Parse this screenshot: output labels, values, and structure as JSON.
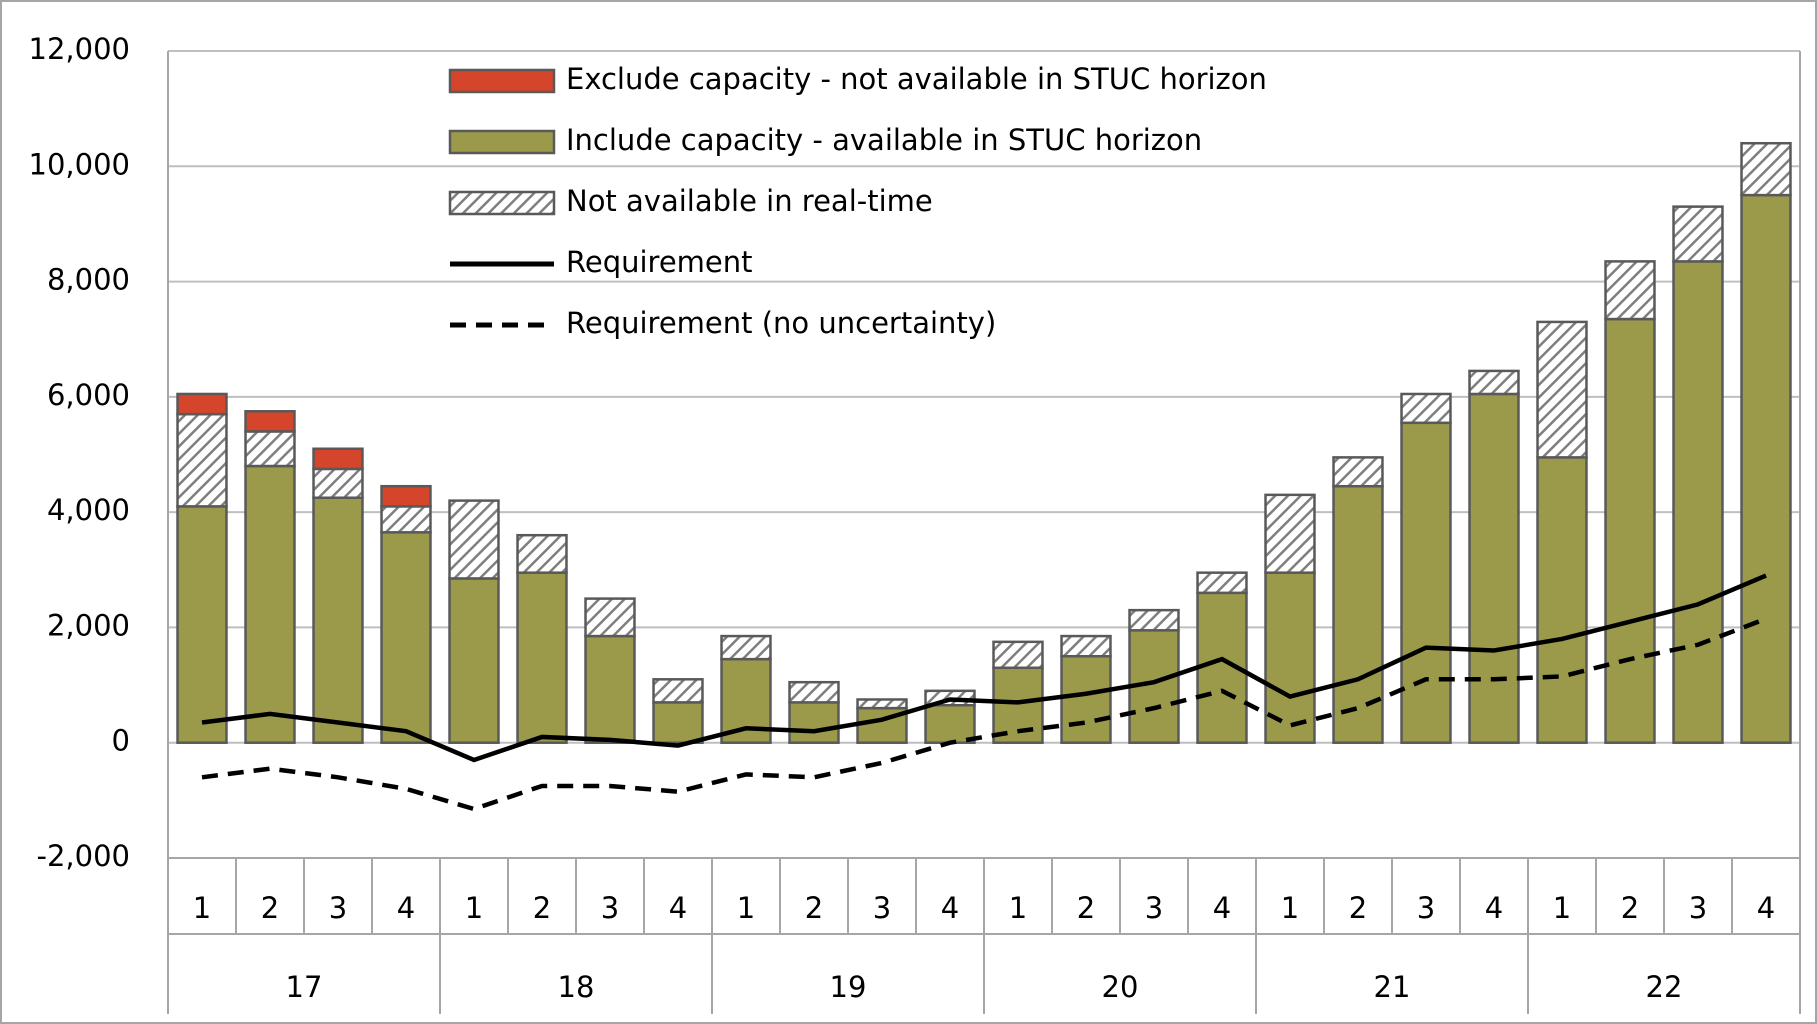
{
  "chart_data": {
    "type": "bar",
    "stacked": true,
    "categories": [
      "1",
      "2",
      "3",
      "4",
      "1",
      "2",
      "3",
      "4",
      "1",
      "2",
      "3",
      "4",
      "1",
      "2",
      "3",
      "4",
      "1",
      "2",
      "3",
      "4",
      "1",
      "2",
      "3",
      "4"
    ],
    "category_groups": [
      "17",
      "18",
      "19",
      "20",
      "21",
      "22"
    ],
    "ylim": [
      -2000,
      12000
    ],
    "yticks": [
      {
        "value": -2000,
        "label": "-2,000"
      },
      0,
      {
        "value": 2000,
        "label": "2,000"
      },
      {
        "value": 4000,
        "label": "4,000"
      },
      {
        "value": 6000,
        "label": "6,000"
      },
      {
        "value": 8000,
        "label": "8,000"
      },
      {
        "value": 10000,
        "label": "10,000"
      },
      {
        "value": 12000,
        "label": "12,000"
      }
    ],
    "grid": true,
    "legend": "top",
    "series": [
      {
        "name": "Exclude capacity - not available in STUC horizon",
        "type": "bar",
        "color": "#d5452b",
        "values": [
          350,
          350,
          350,
          350,
          0,
          0,
          0,
          0,
          0,
          0,
          0,
          0,
          0,
          0,
          0,
          0,
          0,
          0,
          0,
          0,
          0,
          0,
          0,
          0
        ]
      },
      {
        "name": "Include capacity - available in STUC horizon",
        "type": "bar",
        "color": "#9b9a4a",
        "values": [
          4100,
          4800,
          4250,
          3650,
          2850,
          2950,
          1850,
          700,
          1450,
          700,
          600,
          650,
          1300,
          1500,
          1950,
          2600,
          2950,
          4450,
          5550,
          6050,
          4950,
          7350,
          8350,
          9500
        ]
      },
      {
        "name": "Not available in real-time",
        "type": "bar",
        "color": "#7f7f7f",
        "hatched": true,
        "values": [
          1600,
          600,
          500,
          450,
          1350,
          650,
          650,
          400,
          400,
          350,
          150,
          250,
          450,
          350,
          350,
          350,
          1350,
          500,
          500,
          400,
          2350,
          1000,
          950,
          900
        ]
      },
      {
        "name": "Requirement",
        "type": "line",
        "color": "#000000",
        "dashed": false,
        "values": [
          350,
          500,
          350,
          200,
          -300,
          100,
          50,
          -50,
          250,
          200,
          400,
          750,
          700,
          850,
          1050,
          1450,
          800,
          1100,
          1650,
          1600,
          1800,
          2100,
          2400,
          2900
        ]
      },
      {
        "name": "Requirement (no uncertainty)",
        "type": "line",
        "color": "#000000",
        "dashed": true,
        "values": [
          -600,
          -450,
          -600,
          -800,
          -1150,
          -750,
          -750,
          -850,
          -550,
          -600,
          -350,
          0,
          200,
          350,
          600,
          900,
          300,
          600,
          1100,
          1100,
          1150,
          1450,
          1700,
          2150
        ]
      }
    ]
  }
}
